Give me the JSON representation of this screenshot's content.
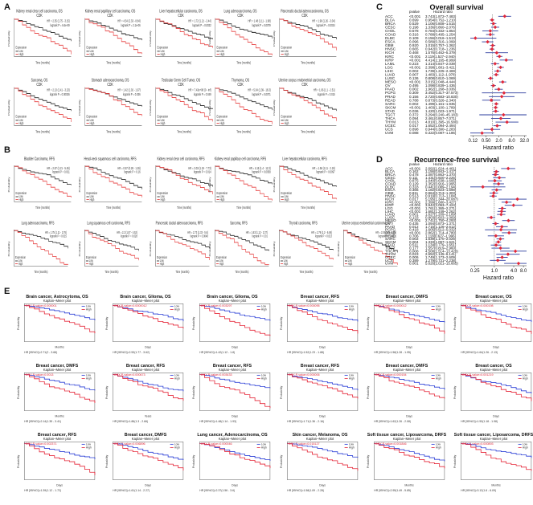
{
  "panel_labels": {
    "a": "A",
    "b": "B",
    "c": "C",
    "d": "D",
    "e": "E"
  },
  "common": {
    "probability": "Probability",
    "time": "Time (months)",
    "expression": "Expression",
    "low": "Low",
    "high": "High",
    "days": "Days",
    "months": "Months",
    "years": "Years",
    "kaplan": "Kaplan–Meier plot"
  },
  "panelA": [
    {
      "title": "Kidney renal clear cell carcinoma, OS",
      "sub": "CDK",
      "hr": "HR = 2.35 (1.75 - 3.15)",
      "p": "logrank P = 6.6e-09"
    },
    {
      "title": "Kidney renal papillary cell carcinoma, OS",
      "sub": "CDK",
      "hr": "HR = 4.54 (2.33 - 8.84)",
      "p": "logrank P = 2.1e-06"
    },
    {
      "title": "Liver hepatocellular carcinoma, OS",
      "sub": "CDK",
      "hr": "HR = 1.72 (1.21 - 2.44)",
      "p": "logrank P = 0.0022"
    },
    {
      "title": "Lung adenocarcinoma, OS",
      "sub": "CDK",
      "hr": "HR = 1.48 (1.11 - 1.98)",
      "p": "logrank P = 0.0079"
    },
    {
      "title": "Pancreatic ductal adenocarcinoma, OS",
      "sub": "CDK",
      "hr": "HR = 1.96 (1.26 - 3.04)",
      "p": "logrank P = 0.0024"
    },
    {
      "title": "Sarcoma, OS",
      "sub": "CDK",
      "hr": "HR = 2.13 (1.41 - 3.23)",
      "p": "logrank P = 0.00026"
    },
    {
      "title": "Stomach adenocarcinoma, OS",
      "sub": "CDK",
      "hr": "HR = 1.42 (1.02 - 1.97)",
      "p": "logrank P = 0.036"
    },
    {
      "title": "Testicular Germ Cell Tumor, OS",
      "sub": "CDK",
      "hr": "HR = 7.43e+08 (0 - inf)",
      "p": "logrank P = 0.049"
    },
    {
      "title": "Thymoma, OS",
      "sub": "CDK",
      "hr": "HR = 5.04 (1.39 - 18.3)",
      "p": "logrank P = 0.0071"
    },
    {
      "title": "Uterine corpus endometrial carcinoma, OS",
      "sub": "CDK",
      "hr": "HR = 1.66 (1.1 - 2.51)",
      "p": "logrank P = 0.015"
    }
  ],
  "panelB": [
    {
      "title": "Bladder Carcinoma, RFS",
      "sub": "",
      "hr": "HR = 2.57 (1.21 - 5.45)",
      "p": "logrank P = 0.011"
    },
    {
      "title": "Head-neck squamous cell carcinoma, RFS",
      "sub": "",
      "hr": "HR = 0.57 (0.26 - 1.26)",
      "p": "logrank P = 0.16"
    },
    {
      "title": "Kidney renal clear cell carcinoma, RFS",
      "sub": "",
      "hr": "HR = 3.03 (1.19 - 7.73)",
      "p": "logrank P = 0.014"
    },
    {
      "title": "Kidney renal papillary cell carcinoma, RFS",
      "sub": "",
      "hr": "HR = 4.15 (1.4 - 12.3)",
      "p": "logrank P = 0.0058"
    },
    {
      "title": "Liver hepatocellular carcinoma, RFS",
      "sub": "",
      "hr": "HR = 1.56 (1.11 - 2.19)",
      "p": "logrank P = 0.0097"
    },
    {
      "title": "Lung adenocarcinoma, RFS",
      "sub": "",
      "hr": "HR = 1.75 (1.11 - 2.76)",
      "p": "logrank P = 0.015"
    },
    {
      "title": "Lung squamous cell carcinoma, RFS",
      "sub": "",
      "hr": "HR = 2.2 (1.07 - 4.52)",
      "p": "logrank P = 0.028"
    },
    {
      "title": "Pancreatic ductal adenocarcinoma, RFS",
      "sub": "",
      "hr": "HR = 2.73 (1.33 - 5.6)",
      "p": "logrank P = 0.0048"
    },
    {
      "title": "Sarcoma, RFS",
      "sub": "",
      "hr": "HR = 1.63 (1.12 - 2.37)",
      "p": "logrank P = 0.01"
    },
    {
      "title": "Thyroid carcinoma, RFS",
      "sub": "",
      "hr": "HR = 2.79 (1.2 - 6.49)",
      "p": "logrank P = 0.013"
    },
    {
      "title": "Uterine corpus endometrial carcinoma, RFS",
      "sub": "",
      "hr": "HR = 2.04 (1.2 - 3.48)",
      "p": "logrank P = 0.0071"
    }
  ],
  "panelE": [
    {
      "title": "Brain cancer, Astrocytoma, OS",
      "sub": "Kaplan–Meier plot",
      "cox": "COX P-value=0.000001",
      "hr": "HR [95%CI]=2.71(2 - 3.68)",
      "xl": "Months"
    },
    {
      "title": "Brain cancer, Glioma, OS",
      "sub": "Kaplan–Meier plot",
      "cox": "COX P-value=0.0000012",
      "hr": "HR [95%CI]=2.53(1.77 - 3.62)",
      "xl": "Days"
    },
    {
      "title": "Brain cancer, Glioma, OS",
      "sub": "Kaplan–Meier plot",
      "cox": "COX P-value=0.003297",
      "hr": "HR [95%CI]=1.42(1.12 - 1.8)",
      "xl": "Days"
    },
    {
      "title": "Breast cancer, RFS",
      "sub": "Kaplan–Meier plot",
      "cox": "COX P-value=0.000095",
      "hr": "HR [95%CI]=1.52(1.23 - 1.88)",
      "xl": "Days"
    },
    {
      "title": "Breast cancer, DMFS",
      "sub": "Kaplan–Meier plot",
      "cox": "COX P-value=0.000012",
      "hr": "HR [95%CI]=1.58(1.28 - 1.95)",
      "xl": "Days"
    },
    {
      "title": "Breast cancer, OS",
      "sub": "Kaplan–Meier plot",
      "cox": "COX P-value=0.000198",
      "hr": "HR [95%CI]=1.64(1.26 - 2.13)",
      "xl": "Days"
    },
    {
      "title": "Breast cancer, DMFS",
      "sub": "Kaplan–Meier plot",
      "cox": "COX P-value=0.0013",
      "hr": "HR [95%CI]=2.14(1.35 - 3.41)",
      "xl": "Months"
    },
    {
      "title": "Breast cancer, RFS",
      "sub": "Kaplan–Meier plot",
      "cox": "COX P-value=0.000673",
      "hr": "HR [95%CI]=1.86(1.3 - 2.66)",
      "xl": "Years"
    },
    {
      "title": "Breast cancer, RFS",
      "sub": "Kaplan–Meier plot",
      "cox": "COX P-value=0.003433",
      "hr": "HR [95%CI]=1.48(1.14 - 1.93)",
      "xl": "Days"
    },
    {
      "title": "Breast cancer, RFS",
      "sub": "Kaplan–Meier plot",
      "cox": "COX P-value=0.000006",
      "hr": "HR [95%CI]=1.71(1.36 - 2.16)",
      "xl": "Days"
    },
    {
      "title": "Breast cancer, DMFS",
      "sub": "Kaplan–Meier plot",
      "cox": "COX P-value=0.000154",
      "hr": "HR [95%CI]=1.62(1.26 - 2.08)",
      "xl": "Days"
    },
    {
      "title": "Breast cancer, OS",
      "sub": "Kaplan–Meier plot",
      "cox": "COX P-value=0.001219",
      "hr": "HR [95%CI]=1.53(1.18 - 1.98)",
      "xl": "Days"
    },
    {
      "title": "Breast cancer, RFS",
      "sub": "Kaplan–Meier plot",
      "cox": "COX P-value=0.002371",
      "hr": "HR [95%CI]=1.39(1.12 - 1.72)",
      "xl": "Days"
    },
    {
      "title": "Breast cancer, DMFS",
      "sub": "Kaplan–Meier plot",
      "cox": "COX P-value=0.006896",
      "hr": "HR [95%CI]=1.61(1.14 - 2.27)",
      "xl": "Days"
    },
    {
      "title": "Lung cancer, Adenocarcinoma, OS",
      "sub": "Kaplan–Meier plot",
      "cox": "COX P-value=0.000046",
      "hr": "HR [95%CI]=2.37(1.56 - 3.6)",
      "xl": "Days"
    },
    {
      "title": "Skin cancer, Melanoma, OS",
      "sub": "Kaplan–Meier plot",
      "cox": "COX P-value=0.015127",
      "hr": "HR [95%CI]=1.58(1.09 - 2.28)",
      "xl": "Days"
    },
    {
      "title": "Soft tissue cancer, Liposarcoma, DRFS",
      "sub": "Kaplan–Meier plot",
      "cox": "COX P-value=0.001846",
      "hr": "HR [95%CI]=2.95(1.49 - 5.85)",
      "xl": "Months"
    },
    {
      "title": "Soft tissue cancer, Liposarcoma, DRFS",
      "sub": "Kaplan–Meier plot",
      "cox": "COX P-value=0.000893",
      "hr": "HR [95%CI]=3.12(1.6 - 6.09)",
      "xl": "Months"
    }
  ],
  "chart_data": [
    {
      "type": "forest",
      "title": "Overall survival",
      "column_headers": {
        "pvalue": "pvalue",
        "hr": "Hazard ratio"
      },
      "xlabel": "Hazard ratio",
      "ticks": [
        "0.12",
        "0.50",
        "2.0",
        "8.0",
        "32.0"
      ],
      "tick_values": [
        0.12,
        0.5,
        2,
        8,
        32
      ],
      "xlim": [
        0.09,
        40
      ],
      "rows": [
        {
          "name": "ACC",
          "p": "<0.001",
          "hr_text": "3.743(1.872–7.483)",
          "hr": 3.743,
          "lo": 1.872,
          "hi": 7.483
        },
        {
          "name": "BLCA",
          "p": "0.699",
          "hr_text": "0.954(0.752–1.210)",
          "hr": 0.954,
          "lo": 0.752,
          "hi": 1.21
        },
        {
          "name": "BRCA",
          "p": "0.529",
          "hr_text": "1.106(0.808–1.515)",
          "hr": 1.106,
          "lo": 0.808,
          "hi": 1.515
        },
        {
          "name": "CESC",
          "p": "0.198",
          "hr_text": "1.336(0.860–2.076)",
          "hr": 1.336,
          "lo": 0.86,
          "hi": 2.076
        },
        {
          "name": "CHOL",
          "p": "0.578",
          "hr_text": "0.784(0.332–1.854)",
          "hr": 0.784,
          "lo": 0.332,
          "hi": 1.854
        },
        {
          "name": "COAD",
          "p": "0.316",
          "hr_text": "0.788(0.495–1.254)",
          "hr": 0.788,
          "lo": 0.495,
          "hi": 1.254
        },
        {
          "name": "DLBC",
          "p": "0.109",
          "hr_text": "0.156(0.016–1.513)",
          "hr": 0.156,
          "lo": 0.016,
          "hi": 1.513
        },
        {
          "name": "ESCA",
          "p": "0.096",
          "hr_text": "0.589(0.316–1.099)",
          "hr": 0.589,
          "lo": 0.316,
          "hi": 1.099
        },
        {
          "name": "GBM",
          "p": "0.920",
          "hr_text": "1.015(0.757–1.362)",
          "hr": 1.015,
          "lo": 0.757,
          "hi": 1.362
        },
        {
          "name": "HNSC",
          "p": "0.665",
          "hr_text": "0.942(0.718–1.236)",
          "hr": 0.942,
          "lo": 0.718,
          "hi": 1.236
        },
        {
          "name": "KICH",
          "p": "0.468",
          "hr_text": "1.576(0.462–5.379)",
          "hr": 1.576,
          "lo": 0.462,
          "hi": 5.379
        },
        {
          "name": "KIRC",
          "p": "<0.001",
          "hr_text": "2.119(1.527–2.940)",
          "hr": 2.119,
          "lo": 1.527,
          "hi": 2.94
        },
        {
          "name": "KIRP",
          "p": "<0.001",
          "hr_text": "4.414(2.165–8.999)",
          "hr": 4.414,
          "lo": 2.165,
          "hi": 8.999
        },
        {
          "name": "LAML",
          "p": "0.223",
          "hr_text": "1.314(0.847–2.039)",
          "hr": 1.314,
          "lo": 0.847,
          "hi": 2.039
        },
        {
          "name": "LGG",
          "p": "<0.001",
          "hr_text": "2.398(1.681–3.421)",
          "hr": 2.398,
          "lo": 1.681,
          "hi": 3.421
        },
        {
          "name": "LIHC",
          "p": "0.002",
          "hr_text": "1.739(1.225–2.469)",
          "hr": 1.739,
          "lo": 1.225,
          "hi": 2.469
        },
        {
          "name": "LUAD",
          "p": "0.007",
          "hr_text": "1.483(1.112–1.978)",
          "hr": 1.483,
          "lo": 1.112,
          "hi": 1.978
        },
        {
          "name": "LUSC",
          "p": "0.136",
          "hr_text": "0.808(0.610–1.069)",
          "hr": 0.808,
          "lo": 0.61,
          "hi": 1.069
        },
        {
          "name": "MESO",
          "p": "<0.001",
          "hr_text": "3.015(2.048–4.444)",
          "hr": 3.015,
          "lo": 2.048,
          "hi": 4.444
        },
        {
          "name": "OV",
          "p": "0.495",
          "hr_text": "1.098(0.839–1.436)",
          "hr": 1.098,
          "lo": 0.839,
          "hi": 1.436
        },
        {
          "name": "PAAD",
          "p": "0.002",
          "hr_text": "1.962(1.268–3.036)",
          "hr": 1.962,
          "lo": 1.268,
          "hi": 3.036
        },
        {
          "name": "PCPG",
          "p": "0.309",
          "hr_text": "3.452(0.317–37.573)",
          "hr": 3.452,
          "lo": 0.317,
          "hi": 37.573
        },
        {
          "name": "PRAD",
          "p": "0.156",
          "hr_text": "2.720(0.683–10.830)",
          "hr": 2.72,
          "lo": 0.683,
          "hi": 10.83
        },
        {
          "name": "READ",
          "p": "0.788",
          "hr_text": "0.873(0.326–2.340)",
          "hr": 0.873,
          "lo": 0.326,
          "hi": 2.34
        },
        {
          "name": "SARC",
          "p": "0.002",
          "hr_text": "1.499(1.161–1.935)",
          "hr": 1.499,
          "lo": 1.161,
          "hi": 1.935
        },
        {
          "name": "SKCM",
          "p": "<0.001",
          "hr_text": "1.403(1.100–1.789)",
          "hr": 1.403,
          "lo": 1.1,
          "hi": 1.789
        },
        {
          "name": "STAD",
          "p": "0.036",
          "hr_text": "1.420(1.023–1.971)",
          "hr": 1.42,
          "lo": 1.023,
          "hi": 1.971
        },
        {
          "name": "TGCT",
          "p": "0.372",
          "hr_text": "3.294(0.240–45.183)",
          "hr": 3.294,
          "lo": 0.24,
          "hi": 45.183
        },
        {
          "name": "THCA",
          "p": "0.094",
          "hr_text": "2.461(0.857–7.071)",
          "hr": 2.461,
          "lo": 0.857,
          "hi": 7.071
        },
        {
          "name": "THYM",
          "p": "0.013",
          "hr_text": "4.810(1.395–16.580)",
          "hr": 4.81,
          "lo": 1.395,
          "hi": 16.58
        },
        {
          "name": "UCEC",
          "p": "0.017",
          "hr_text": "1.652(1.094–2.494)",
          "hr": 1.652,
          "lo": 1.094,
          "hi": 2.494
        },
        {
          "name": "UCS",
          "p": "0.898",
          "hr_text": "0.944(0.390–2.283)",
          "hr": 0.944,
          "lo": 0.39,
          "hi": 2.283
        },
        {
          "name": "UVM",
          "p": "0.088",
          "hr_text": "0.322(0.087–1.186)",
          "hr": 0.322,
          "lo": 0.087,
          "hi": 1.186
        }
      ]
    },
    {
      "type": "forest",
      "title": "Recurrence-free survival",
      "column_headers": {
        "pvalue": "pvalue",
        "hr": "Hazard ratio"
      },
      "xlabel": "Hazard ratio",
      "ticks": [
        "0.25",
        "1.0",
        "4.0",
        "8.0"
      ],
      "tick_values": [
        0.25,
        1,
        4,
        8
      ],
      "xlim": [
        0.18,
        10
      ],
      "rows": [
        {
          "name": "ACC",
          "p": "<0.001",
          "hr_text": "2.692(1.624–4.461)",
          "hr": 2.692,
          "lo": 1.624,
          "hi": 4.461
        },
        {
          "name": "BLCA",
          "p": "0.162",
          "hr_text": "1.156(0.943–1.417)",
          "hr": 1.156,
          "lo": 0.943,
          "hi": 1.417
        },
        {
          "name": "BRCA",
          "p": "0.478",
          "hr_text": "1.087(0.863–1.370)",
          "hr": 1.087,
          "lo": 0.863,
          "hi": 1.37
        },
        {
          "name": "CESC",
          "p": "0.111",
          "hr_text": "1.431(0.920–2.225)",
          "hr": 1.431,
          "lo": 0.92,
          "hi": 2.225
        },
        {
          "name": "CHOL",
          "p": "0.875",
          "hr_text": "1.040(0.638–1.695)",
          "hr": 1.04,
          "lo": 0.638,
          "hi": 1.695
        },
        {
          "name": "COAD",
          "p": "0.129",
          "hr_text": "1.352(0.916–1.995)",
          "hr": 1.352,
          "lo": 0.916,
          "hi": 1.995
        },
        {
          "name": "DLBC",
          "p": "0.318",
          "hr_text": "0.441(0.089–2.194)",
          "hr": 0.441,
          "lo": 0.089,
          "hi": 2.194
        },
        {
          "name": "ESCA",
          "p": "0.365",
          "hr_text": "1.182(0.823–1.698)",
          "hr": 1.182,
          "lo": 0.823,
          "hi": 1.698
        },
        {
          "name": "GBM",
          "p": "0.811",
          "hr_text": "0.964(0.713–1.303)",
          "hr": 0.964,
          "lo": 0.713,
          "hi": 1.303
        },
        {
          "name": "HNSC",
          "p": "0.513",
          "hr_text": "0.919(0.713–1.184)",
          "hr": 0.919,
          "lo": 0.713,
          "hi": 1.184
        },
        {
          "name": "KICH",
          "p": "0.017",
          "hr_text": "5.195(1.344–20.087)",
          "hr": 5.195,
          "lo": 1.344,
          "hi": 20.087
        },
        {
          "name": "KIRC",
          "p": "<0.001",
          "hr_text": "2.399(1.680–3.427)",
          "hr": 2.399,
          "lo": 1.68,
          "hi": 3.427
        },
        {
          "name": "KIRP",
          "p": "<0.001",
          "hr_text": "3.942(2.093–7.424)",
          "hr": 3.942,
          "lo": 2.093,
          "hi": 7.424
        },
        {
          "name": "LGG",
          "p": "<0.001",
          "hr_text": "1.761(1.365–2.271)",
          "hr": 1.761,
          "lo": 1.365,
          "hi": 2.271
        },
        {
          "name": "LIHC",
          "p": "<0.001",
          "hr_text": "1.681(1.249–2.262)",
          "hr": 1.681,
          "lo": 1.249,
          "hi": 2.262
        },
        {
          "name": "LUAD",
          "p": "0.001",
          "hr_text": "1.627(1.209–2.189)",
          "hr": 1.627,
          "lo": 1.209,
          "hi": 2.189
        },
        {
          "name": "LUSC",
          "p": "0.133",
          "hr_text": "0.803(0.603–1.069)",
          "hr": 0.803,
          "lo": 0.603,
          "hi": 1.069
        },
        {
          "name": "MESO",
          "p": "<0.001",
          "hr_text": "2.741(1.750–4.293)",
          "hr": 2.741,
          "lo": 1.75,
          "hi": 4.293
        },
        {
          "name": "OV",
          "p": "0.435",
          "hr_text": "1.094(0.873–1.371)",
          "hr": 1.094,
          "lo": 0.873,
          "hi": 1.371
        },
        {
          "name": "PAAD",
          "p": "0.012",
          "hr_text": "1.715(1.126–2.612)",
          "hr": 1.715,
          "lo": 1.126,
          "hi": 2.612
        },
        {
          "name": "PCPG",
          "p": "0.418",
          "hr_text": "1.605(0.512–5.032)",
          "hr": 1.605,
          "lo": 0.512,
          "hi": 5.032
        },
        {
          "name": "PRAD",
          "p": "<0.001",
          "hr_text": "2.862(1.714–4.780)",
          "hr": 2.862,
          "lo": 1.714,
          "hi": 4.78
        },
        {
          "name": "READ",
          "p": "0.706",
          "hr_text": "1.118(0.627–1.996)",
          "hr": 1.118,
          "lo": 0.627,
          "hi": 1.996
        },
        {
          "name": "SARC",
          "p": "0.002",
          "hr_text": "1.539(1.170–2.025)",
          "hr": 1.539,
          "lo": 1.17,
          "hi": 2.025
        },
        {
          "name": "SKCM",
          "p": "0.004",
          "hr_text": "1.333(1.097–1.621)",
          "hr": 1.333,
          "lo": 1.097,
          "hi": 1.621
        },
        {
          "name": "STAD",
          "p": "0.511",
          "hr_text": "1.134(0.779–1.651)",
          "hr": 1.134,
          "lo": 0.779,
          "hi": 1.651
        },
        {
          "name": "TGCT",
          "p": "0.177",
          "hr_text": "1.557(0.819–2.960)",
          "hr": 1.557,
          "lo": 0.819,
          "hi": 2.96
        },
        {
          "name": "THCA",
          "p": "0.008",
          "hr_text": "4.508(1.514–13.420)",
          "hr": 4.508,
          "lo": 1.514,
          "hi": 13.42
        },
        {
          "name": "THYM",
          "p": "0.023",
          "hr_text": "2.652(1.145–6.141)",
          "hr": 2.652,
          "lo": 1.145,
          "hi": 6.141
        },
        {
          "name": "UCEC",
          "p": "0.006",
          "hr_text": "1.749(1.173–2.609)",
          "hr": 1.749,
          "lo": 1.173,
          "hi": 2.609
        },
        {
          "name": "UCS",
          "p": "0.389",
          "hr_text": "1.279(0.731–2.238)",
          "hr": 1.279,
          "lo": 0.731,
          "hi": 2.238
        },
        {
          "name": "UVM",
          "p": "0.001",
          "hr_text": "5.626(2.021–15.665)",
          "hr": 5.626,
          "lo": 2.021,
          "hi": 15.665
        }
      ]
    }
  ]
}
